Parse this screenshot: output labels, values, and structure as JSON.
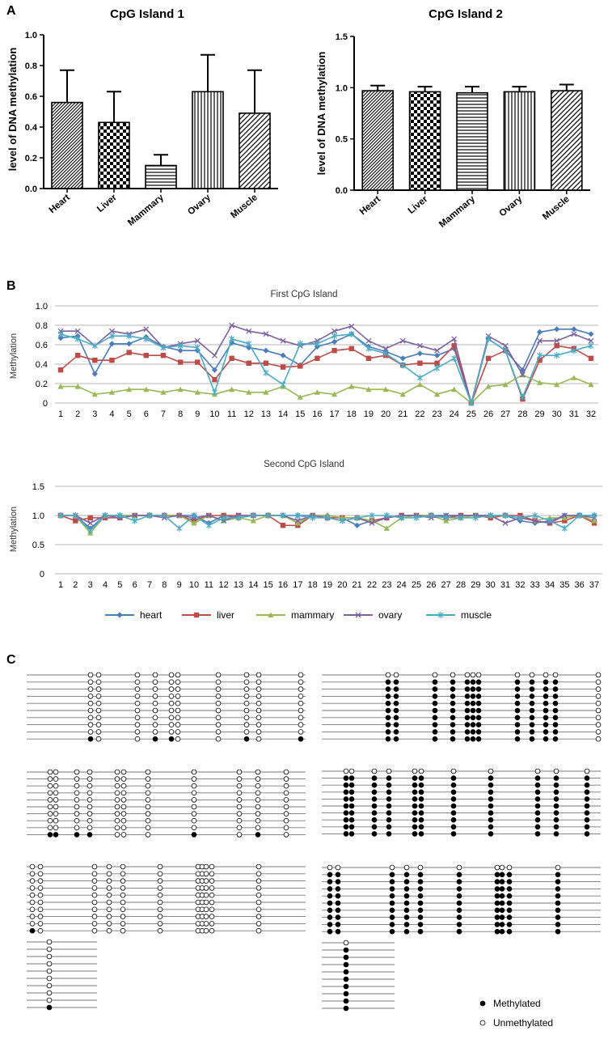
{
  "panels": {
    "a": "A",
    "b": "B",
    "c": "C"
  },
  "chart_data": [
    {
      "type": "bar",
      "panel": "A",
      "title": "CpG Island 1",
      "ylabel": "level of DNA methylation",
      "ylim": [
        0,
        1.0
      ],
      "yticks": [
        "0.0",
        "0.2",
        "0.4",
        "0.6",
        "0.8",
        "1.0"
      ],
      "categories": [
        "Heart",
        "Liver",
        "Mammary",
        "Ovary",
        "Muscle"
      ],
      "values": [
        0.56,
        0.43,
        0.15,
        0.63,
        0.49
      ],
      "error": [
        0.21,
        0.2,
        0.07,
        0.24,
        0.28
      ],
      "patterns": [
        "diag-dense",
        "checker",
        "horizontal",
        "vertical",
        "diagonal"
      ]
    },
    {
      "type": "bar",
      "panel": "A",
      "title": "CpG Island 2",
      "ylabel": "level of DNA methylation",
      "ylim": [
        0,
        1.5
      ],
      "yticks": [
        "0.0",
        "0.5",
        "1.0",
        "1.5"
      ],
      "categories": [
        "Heart",
        "Liver",
        "Mammary",
        "Ovary",
        "Muscle"
      ],
      "values": [
        0.97,
        0.96,
        0.95,
        0.96,
        0.97
      ],
      "error": [
        0.05,
        0.05,
        0.06,
        0.05,
        0.06
      ],
      "patterns": [
        "diag-dense",
        "checker",
        "horizontal",
        "vertical",
        "diagonal"
      ]
    },
    {
      "type": "line",
      "panel": "B",
      "title": "First CpG Island",
      "ylabel": "Methylation",
      "ylim": [
        0,
        1.0
      ],
      "yticks": [
        "0",
        "0.2",
        "0.4",
        "0.6",
        "0.8",
        "1.0"
      ],
      "x": [
        "1",
        "2",
        "3",
        "4",
        "5",
        "6",
        "7",
        "8",
        "9",
        "10",
        "11",
        "12",
        "13",
        "14",
        "15",
        "16",
        "17",
        "18",
        "19",
        "20",
        "21",
        "22",
        "23",
        "24",
        "25",
        "26",
        "27",
        "28",
        "29",
        "30",
        "31",
        "32"
      ],
      "series": [
        {
          "name": "heart",
          "color": "#4a7ebb",
          "marker": "diamond",
          "values": [
            0.67,
            0.69,
            0.3,
            0.61,
            0.61,
            0.68,
            0.58,
            0.54,
            0.54,
            0.34,
            0.62,
            0.57,
            0.54,
            0.49,
            0.39,
            0.58,
            0.63,
            0.71,
            0.58,
            0.53,
            0.46,
            0.51,
            0.49,
            0.56,
            0.0,
            0.66,
            0.54,
            0.34,
            0.73,
            0.76,
            0.76,
            0.71
          ]
        },
        {
          "name": "liver",
          "color": "#be4b48",
          "marker": "square",
          "values": [
            0.34,
            0.49,
            0.44,
            0.44,
            0.52,
            0.49,
            0.49,
            0.42,
            0.42,
            0.24,
            0.46,
            0.41,
            0.41,
            0.37,
            0.38,
            0.46,
            0.54,
            0.56,
            0.46,
            0.49,
            0.39,
            0.41,
            0.41,
            0.59,
            0.0,
            0.46,
            0.54,
            0.04,
            0.44,
            0.59,
            0.56,
            0.46
          ]
        },
        {
          "name": "mammary",
          "color": "#98b954",
          "marker": "triangle",
          "values": [
            0.17,
            0.17,
            0.09,
            0.11,
            0.14,
            0.14,
            0.11,
            0.14,
            0.11,
            0.09,
            0.14,
            0.11,
            0.11,
            0.17,
            0.06,
            0.11,
            0.09,
            0.17,
            0.14,
            0.14,
            0.09,
            0.19,
            0.09,
            0.14,
            0.0,
            0.17,
            0.19,
            0.29,
            0.21,
            0.19,
            0.26,
            0.19
          ]
        },
        {
          "name": "ovary",
          "color": "#7d60a0",
          "marker": "x",
          "values": [
            0.74,
            0.74,
            0.59,
            0.74,
            0.71,
            0.76,
            0.57,
            0.61,
            0.64,
            0.49,
            0.8,
            0.74,
            0.71,
            0.64,
            0.59,
            0.64,
            0.74,
            0.79,
            0.64,
            0.56,
            0.64,
            0.59,
            0.54,
            0.66,
            0.0,
            0.69,
            0.59,
            0.29,
            0.64,
            0.64,
            0.71,
            0.64
          ]
        },
        {
          "name": "muscle",
          "color": "#4bacc6",
          "marker": "star",
          "values": [
            0.71,
            0.66,
            0.59,
            0.69,
            0.69,
            0.66,
            0.57,
            0.59,
            0.57,
            0.11,
            0.66,
            0.61,
            0.31,
            0.19,
            0.61,
            0.61,
            0.69,
            0.71,
            0.56,
            0.51,
            0.39,
            0.26,
            0.36,
            0.46,
            0.0,
            0.66,
            0.54,
            0.06,
            0.49,
            0.49,
            0.54,
            0.59
          ]
        }
      ]
    },
    {
      "type": "line",
      "panel": "B",
      "title": "Second CpG Island",
      "ylabel": "Methylation",
      "ylim": [
        0,
        1.5
      ],
      "yticks": [
        "0",
        "0.5",
        "1.0",
        "1.5"
      ],
      "x": [
        "1",
        "2",
        "3",
        "4",
        "5",
        "6",
        "7",
        "8",
        "9",
        "10",
        "11",
        "12",
        "13",
        "14",
        "15",
        "16",
        "17",
        "18",
        "19",
        "20",
        "21",
        "22",
        "23",
        "24",
        "25",
        "26",
        "27",
        "28",
        "29",
        "30",
        "31",
        "32",
        "33",
        "34",
        "35",
        "36",
        "37"
      ],
      "series": [
        {
          "name": "heart",
          "color": "#4a7ebb",
          "marker": "diamond",
          "values": [
            1.0,
            1.0,
            0.78,
            1.0,
            1.0,
            1.0,
            1.0,
            1.0,
            1.0,
            1.0,
            0.87,
            1.0,
            0.96,
            1.0,
            1.0,
            1.0,
            1.0,
            1.0,
            1.0,
            0.96,
            0.83,
            0.91,
            0.96,
            1.0,
            1.0,
            1.0,
            1.0,
            1.0,
            1.0,
            1.0,
            1.0,
            0.91,
            0.87,
            0.91,
            1.0,
            1.0,
            1.0
          ]
        },
        {
          "name": "liver",
          "color": "#be4b48",
          "marker": "square",
          "values": [
            1.0,
            0.91,
            0.96,
            0.96,
            0.96,
            1.0,
            1.0,
            1.0,
            1.0,
            0.91,
            1.0,
            1.0,
            1.0,
            1.0,
            1.0,
            0.83,
            0.83,
            1.0,
            0.96,
            0.96,
            0.96,
            0.91,
            0.96,
            1.0,
            1.0,
            1.0,
            0.96,
            1.0,
            1.0,
            0.96,
            1.0,
            1.0,
            0.91,
            0.87,
            0.91,
            1.0,
            0.87
          ]
        },
        {
          "name": "mammary",
          "color": "#98b954",
          "marker": "triangle",
          "values": [
            1.0,
            1.0,
            0.7,
            1.0,
            1.0,
            1.0,
            1.0,
            1.0,
            1.0,
            0.87,
            1.0,
            0.91,
            0.96,
            0.91,
            1.0,
            1.0,
            0.87,
            1.0,
            1.0,
            0.96,
            0.96,
            0.91,
            0.78,
            0.96,
            1.0,
            1.0,
            0.91,
            0.96,
            1.0,
            1.0,
            1.0,
            0.96,
            0.91,
            0.96,
            0.96,
            1.0,
            0.91
          ]
        },
        {
          "name": "ovary",
          "color": "#7d60a0",
          "marker": "x",
          "values": [
            1.0,
            1.0,
            0.87,
            1.0,
            0.96,
            1.0,
            1.0,
            0.96,
            1.0,
            0.96,
            1.0,
            0.91,
            1.0,
            1.0,
            1.0,
            1.0,
            0.91,
            1.0,
            0.96,
            0.91,
            0.96,
            0.87,
            0.96,
            1.0,
            1.0,
            0.96,
            1.0,
            1.0,
            1.0,
            1.0,
            0.87,
            0.96,
            0.91,
            0.87,
            1.0,
            1.0,
            0.96
          ]
        },
        {
          "name": "muscle",
          "color": "#4bacc6",
          "marker": "star",
          "values": [
            1.0,
            1.0,
            0.74,
            1.0,
            1.0,
            0.91,
            1.0,
            1.0,
            0.78,
            1.0,
            0.83,
            0.96,
            0.96,
            1.0,
            1.0,
            1.0,
            1.0,
            0.96,
            0.96,
            0.91,
            0.96,
            1.0,
            1.0,
            0.96,
            0.96,
            1.0,
            0.96,
            0.96,
            0.96,
            1.0,
            1.0,
            0.96,
            1.0,
            0.91,
            0.78,
            1.0,
            1.0
          ]
        }
      ]
    }
  ],
  "methylation_grid": {
    "legend": {
      "methylated": "Methylated",
      "unmethylated": "Unmethylated"
    },
    "methylated_color": "#000000",
    "unmethylated_color": "#ffffff",
    "blocks": [
      {
        "rows": 10,
        "sites": 14,
        "pattern": "last_row_partial",
        "methylated_in_last_row": [
          0,
          3,
          4,
          7,
          9,
          11
        ]
      },
      {
        "rows": 10,
        "sites": 13,
        "pattern": "mostly_methylated"
      },
      {
        "rows": 10,
        "sites": 14,
        "pattern": "last_row_partial",
        "methylated_in_last_row": [
          0,
          1,
          2,
          3,
          7,
          9,
          11
        ]
      },
      {
        "rows": 10,
        "sites": 14,
        "pattern": "mostly_methylated"
      },
      {
        "rows": 10,
        "sites": 14,
        "pattern": "last_row_partial",
        "methylated_in_last_row": [
          0
        ]
      },
      {
        "rows": 10,
        "sites": 13,
        "pattern": "mostly_methylated"
      },
      {
        "rows": 10,
        "sites": 1,
        "pattern": "last_row_partial",
        "methylated_in_last_row": [
          0
        ]
      },
      {
        "rows": 10,
        "sites": 1,
        "pattern": "mostly_methylated"
      }
    ]
  }
}
